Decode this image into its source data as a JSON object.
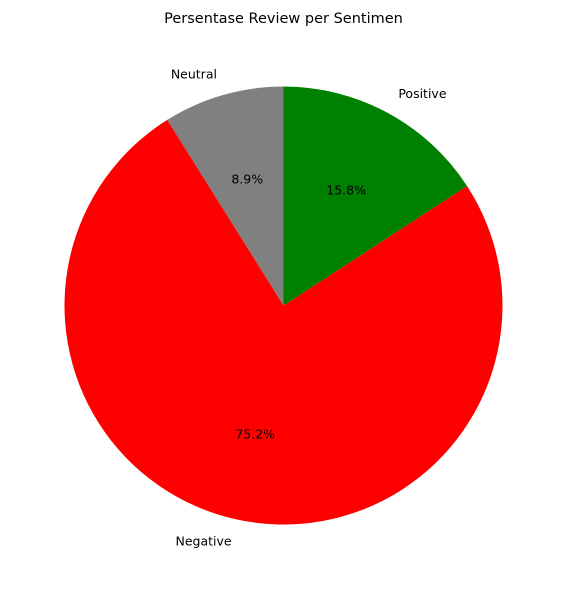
{
  "chart_data": {
    "type": "pie",
    "title": "Persentase Review per Sentimen",
    "start_angle_deg": 90,
    "direction": "counterclockwise",
    "slices": [
      {
        "label": "Neutral",
        "value": 8.9,
        "pct_label": "8.9%",
        "color": "#808080"
      },
      {
        "label": "Negative",
        "value": 75.2,
        "pct_label": "75.2%",
        "color": "#ff0000"
      },
      {
        "label": "Positive",
        "value": 15.8,
        "pct_label": "15.8%",
        "color": "#008000"
      }
    ]
  }
}
